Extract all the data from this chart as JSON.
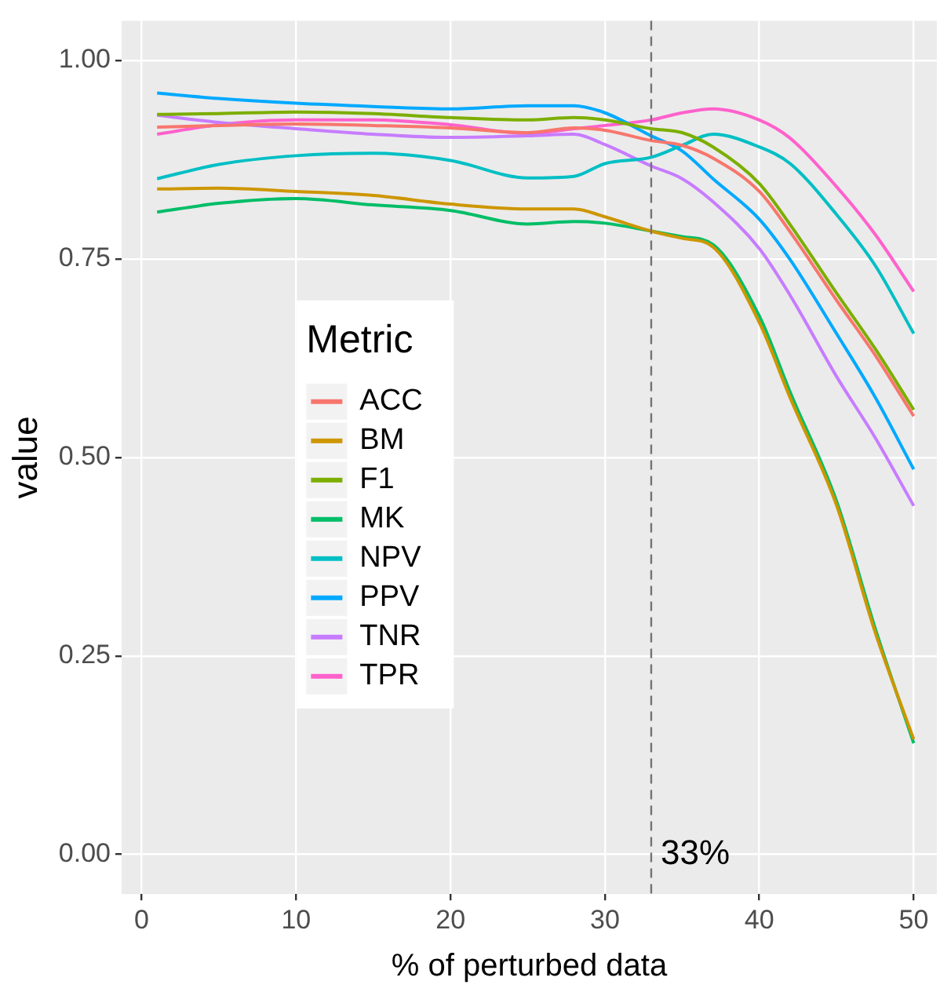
{
  "chart_data": {
    "type": "line",
    "xlabel": "% of perturbed data",
    "ylabel": "value",
    "legend_title": "Metric",
    "x": [
      1,
      5,
      10,
      15,
      20,
      25,
      28,
      30,
      33,
      35,
      37,
      40,
      42,
      45,
      47.5,
      50
    ],
    "series": [
      {
        "name": "ACC",
        "color": "#f8766d",
        "values": [
          0.916,
          0.918,
          0.92,
          0.918,
          0.915,
          0.909,
          0.915,
          0.912,
          0.899,
          0.893,
          0.877,
          0.835,
          0.784,
          0.698,
          0.629,
          0.552
        ]
      },
      {
        "name": "BM",
        "color": "#cd9600",
        "values": [
          0.838,
          0.839,
          0.835,
          0.83,
          0.819,
          0.813,
          0.813,
          0.803,
          0.785,
          0.776,
          0.765,
          0.67,
          0.575,
          0.44,
          0.28,
          0.145
        ]
      },
      {
        "name": "F1",
        "color": "#7cae00",
        "values": [
          0.932,
          0.933,
          0.935,
          0.933,
          0.928,
          0.925,
          0.928,
          0.925,
          0.914,
          0.909,
          0.891,
          0.845,
          0.793,
          0.707,
          0.637,
          0.56
        ]
      },
      {
        "name": "MK",
        "color": "#00be67",
        "values": [
          0.809,
          0.82,
          0.826,
          0.818,
          0.811,
          0.794,
          0.797,
          0.795,
          0.785,
          0.778,
          0.768,
          0.678,
          0.582,
          0.445,
          0.285,
          0.14
        ]
      },
      {
        "name": "NPV",
        "color": "#00bfc4",
        "values": [
          0.851,
          0.869,
          0.88,
          0.883,
          0.874,
          0.852,
          0.854,
          0.87,
          0.878,
          0.893,
          0.907,
          0.891,
          0.87,
          0.806,
          0.742,
          0.656
        ]
      },
      {
        "name": "PPV",
        "color": "#00a9ff",
        "values": [
          0.959,
          0.952,
          0.946,
          0.942,
          0.939,
          0.943,
          0.943,
          0.934,
          0.905,
          0.886,
          0.851,
          0.8,
          0.749,
          0.656,
          0.576,
          0.485
        ]
      },
      {
        "name": "TNR",
        "color": "#c77cff",
        "values": [
          0.931,
          0.922,
          0.914,
          0.907,
          0.903,
          0.905,
          0.907,
          0.894,
          0.867,
          0.851,
          0.822,
          0.763,
          0.704,
          0.602,
          0.525,
          0.439
        ]
      },
      {
        "name": "TPR",
        "color": "#ff61cc",
        "values": [
          0.907,
          0.919,
          0.925,
          0.925,
          0.919,
          0.908,
          0.914,
          0.918,
          0.925,
          0.934,
          0.939,
          0.925,
          0.902,
          0.841,
          0.781,
          0.709
        ]
      }
    ],
    "xlim": [
      -1.3,
      51.5
    ],
    "xticks": [
      0,
      10,
      20,
      30,
      40,
      50
    ],
    "ylim": [
      -0.05,
      1.05
    ],
    "yticks": [
      {
        "value": 0,
        "label": "0.00"
      },
      {
        "value": 0.25,
        "label": "0.25"
      },
      {
        "value": 0.5,
        "label": "0.50"
      },
      {
        "value": 0.75,
        "label": "0.75"
      },
      {
        "value": 1,
        "label": "1.00"
      }
    ],
    "ref_lines": [
      {
        "axis": "x",
        "value": 33,
        "color": "#737373",
        "line_style": "dashed"
      }
    ],
    "annotations": [
      {
        "text": "33%",
        "x": 33,
        "y": 0
      }
    ],
    "grid": true,
    "legend": "left",
    "marker": "none",
    "line_style": "solid"
  }
}
